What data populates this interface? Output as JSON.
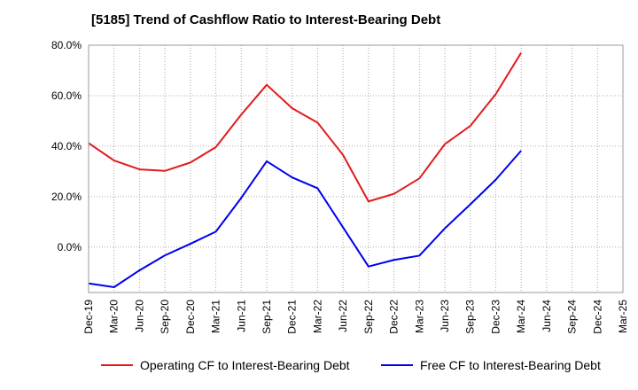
{
  "chart_data": {
    "type": "line",
    "title": "[5185]  Trend of Cashflow Ratio to Interest-Bearing Debt",
    "xlabel": "",
    "ylabel": "",
    "ylim": [
      -18,
      80
    ],
    "yticks": [
      0,
      20,
      40,
      60,
      80
    ],
    "ytick_labels": [
      "0.0%",
      "20.0%",
      "40.0%",
      "60.0%",
      "80.0%"
    ],
    "grid": true,
    "legend_position": "bottom",
    "categories": [
      "Dec-19",
      "Mar-20",
      "Jun-20",
      "Sep-20",
      "Dec-20",
      "Mar-21",
      "Jun-21",
      "Sep-21",
      "Dec-21",
      "Mar-22",
      "Jun-22",
      "Sep-22",
      "Dec-22",
      "Mar-23",
      "Jun-23",
      "Sep-23",
      "Dec-23",
      "Mar-24",
      "Jun-24",
      "Sep-24",
      "Dec-24",
      "Mar-25"
    ],
    "series": [
      {
        "name": "Operating CF to Interest-Bearing Debt",
        "color": "#e31a1c",
        "values": [
          41.2,
          34.3,
          30.8,
          30.2,
          33.5,
          39.6,
          52.5,
          64.3,
          55.0,
          49.3,
          36.5,
          18.1,
          21.1,
          27.2,
          40.8,
          48.0,
          60.6,
          77.0,
          null,
          null,
          null,
          null
        ]
      },
      {
        "name": "Free CF to Interest-Bearing Debt",
        "color": "#0000ee",
        "values": [
          -14.4,
          -15.9,
          -9.2,
          -3.3,
          1.3,
          6.1,
          19.5,
          34.0,
          27.6,
          23.3,
          7.8,
          -7.7,
          -5.1,
          -3.4,
          7.4,
          16.9,
          26.7,
          38.2,
          null,
          null,
          null,
          null
        ]
      }
    ]
  }
}
